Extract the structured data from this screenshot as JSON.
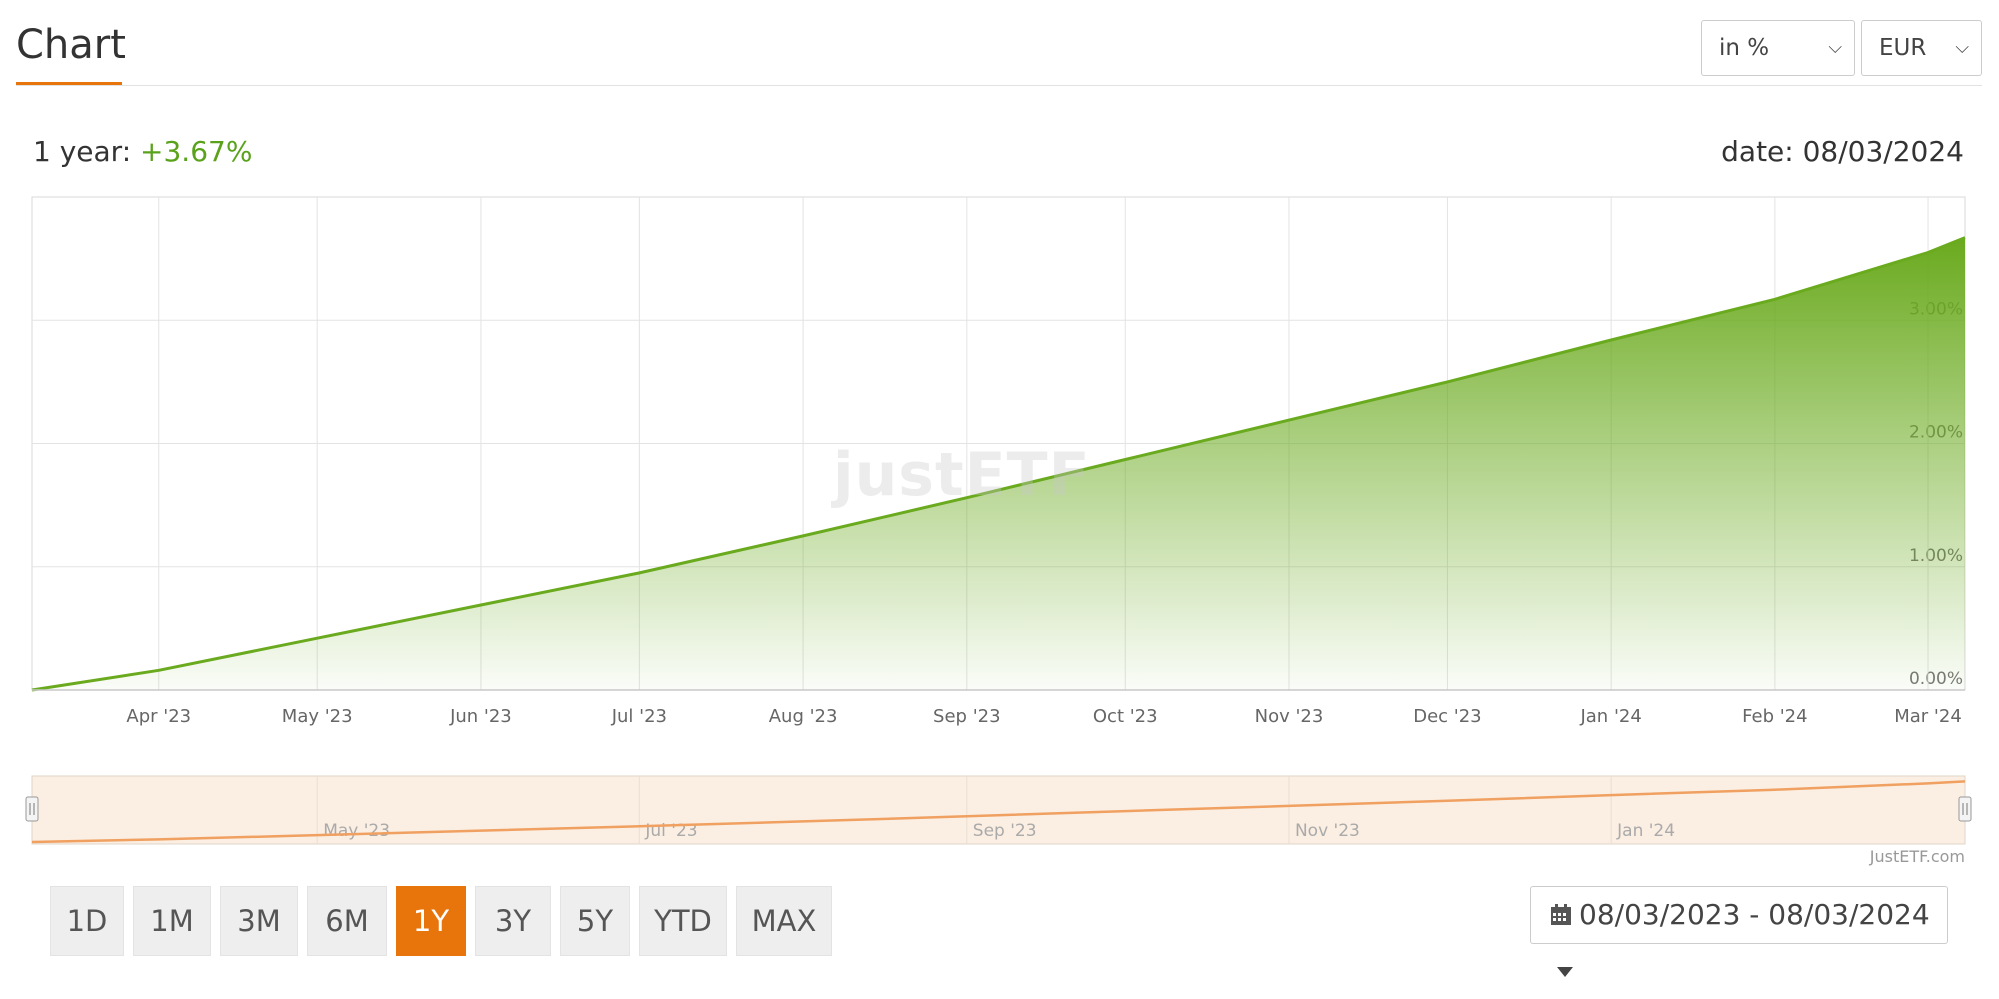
{
  "header": {
    "title": "Chart",
    "unit_select": "in %",
    "currency_select": "EUR"
  },
  "summary": {
    "label": "1 year:",
    "value": "+3.67%",
    "date": "date: 08/03/2024"
  },
  "watermark": "justETF",
  "credit": "JustETF.com",
  "ranges": [
    "1D",
    "1M",
    "3M",
    "6M",
    "1Y",
    "3Y",
    "5Y",
    "YTD",
    "MAX"
  ],
  "active_range": "1Y",
  "date_range": "08/03/2023 - 08/03/2024",
  "colors": {
    "accent": "#e8740c",
    "line": "#6aaa1e",
    "positive": "#5aa21c",
    "navigator_fill": "#fbeee2"
  },
  "chart_data": {
    "type": "area",
    "x": [
      "2023-03-08",
      "2023-04-01",
      "2023-05-01",
      "2023-06-01",
      "2023-07-01",
      "2023-08-01",
      "2023-09-01",
      "2023-10-01",
      "2023-11-01",
      "2023-12-01",
      "2024-01-01",
      "2024-02-01",
      "2024-03-01",
      "2024-03-08"
    ],
    "series": [
      {
        "values": [
          0.0,
          0.16,
          0.42,
          0.69,
          0.95,
          1.25,
          1.56,
          1.87,
          2.19,
          2.5,
          2.84,
          3.17,
          3.55,
          3.67
        ]
      }
    ],
    "x_tick_labels": [
      "Apr '23",
      "May '23",
      "Jun '23",
      "Jul '23",
      "Aug '23",
      "Sep '23",
      "Oct '23",
      "Nov '23",
      "Dec '23",
      "Jan '24",
      "Feb '24",
      "Mar '24"
    ],
    "y_tick_labels": [
      "0.00%",
      "1.00%",
      "2.00%",
      "3.00%"
    ],
    "y_ticks": [
      0,
      1,
      2,
      3
    ],
    "ylim": [
      0,
      4
    ],
    "xlim": [
      "2023-03-08",
      "2024-03-08"
    ],
    "grid": true,
    "navigator_labels": [
      "May '23",
      "Jul '23",
      "Sep '23",
      "Nov '23",
      "Jan '24"
    ]
  }
}
